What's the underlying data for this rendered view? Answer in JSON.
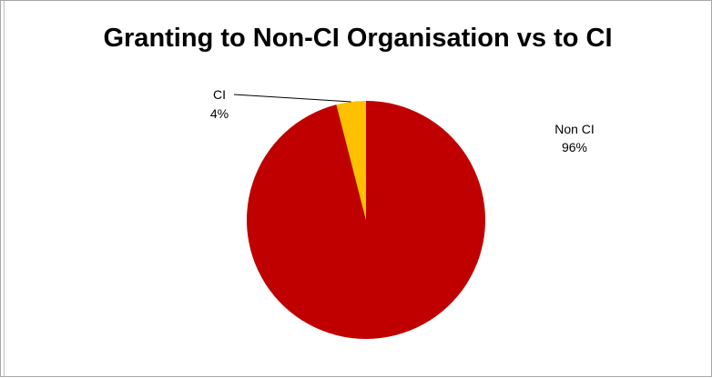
{
  "chart_data": {
    "type": "pie",
    "title": "Granting to Non-CI Organisation vs to CI",
    "slices": [
      {
        "label": "Non CI",
        "percent_label": "96%",
        "value": 96,
        "color": "#c00000"
      },
      {
        "label": "CI",
        "percent_label": "4%",
        "value": 4,
        "color": "#ffc000"
      }
    ],
    "legend": "none",
    "data_labels": "category and percentage"
  }
}
